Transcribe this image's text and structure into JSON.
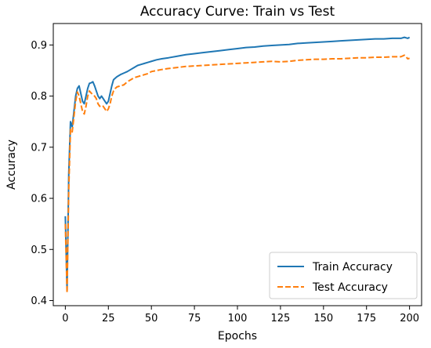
{
  "chart_data": {
    "type": "line",
    "title": "Accuracy Curve: Train vs Test",
    "xlabel": "Epochs",
    "ylabel": "Accuracy",
    "xlim": [
      -7,
      207
    ],
    "ylim": [
      0.39,
      0.942
    ],
    "xticks": [
      0,
      25,
      50,
      75,
      100,
      125,
      150,
      175,
      200
    ],
    "yticks": [
      0.4,
      0.5,
      0.6,
      0.7,
      0.8,
      0.9
    ],
    "ytick_labels": [
      "0.4",
      "0.5",
      "0.6",
      "0.7",
      "0.8",
      "0.9"
    ],
    "grid": false,
    "legend": "bottom-right",
    "series": [
      {
        "name": "Train Accuracy",
        "color": "#1f77b4",
        "style": "solid",
        "x": [
          0,
          1,
          2,
          3,
          4,
          5,
          6,
          7,
          8,
          9,
          10,
          11,
          12,
          13,
          14,
          15,
          16,
          17,
          18,
          19,
          20,
          21,
          22,
          23,
          24,
          25,
          26,
          27,
          28,
          29,
          30,
          32,
          34,
          36,
          38,
          40,
          42,
          44,
          46,
          48,
          50,
          53,
          56,
          60,
          65,
          70,
          75,
          80,
          85,
          90,
          95,
          100,
          105,
          110,
          115,
          120,
          125,
          130,
          135,
          140,
          145,
          150,
          155,
          160,
          165,
          170,
          175,
          180,
          185,
          190,
          195,
          197,
          199,
          200
        ],
        "y": [
          0.565,
          0.42,
          0.65,
          0.75,
          0.74,
          0.77,
          0.8,
          0.815,
          0.82,
          0.805,
          0.79,
          0.785,
          0.8,
          0.815,
          0.825,
          0.826,
          0.828,
          0.82,
          0.81,
          0.8,
          0.795,
          0.8,
          0.795,
          0.79,
          0.785,
          0.79,
          0.805,
          0.82,
          0.832,
          0.835,
          0.838,
          0.842,
          0.845,
          0.848,
          0.852,
          0.856,
          0.86,
          0.862,
          0.864,
          0.866,
          0.868,
          0.871,
          0.873,
          0.875,
          0.878,
          0.881,
          0.883,
          0.885,
          0.887,
          0.889,
          0.891,
          0.893,
          0.895,
          0.896,
          0.898,
          0.899,
          0.9,
          0.901,
          0.903,
          0.904,
          0.905,
          0.906,
          0.907,
          0.908,
          0.909,
          0.91,
          0.911,
          0.912,
          0.912,
          0.913,
          0.913,
          0.915,
          0.913,
          0.915
        ]
      },
      {
        "name": "Test Accuracy",
        "color": "#ff7f0e",
        "style": "dashed",
        "x": [
          0,
          1,
          2,
          3,
          4,
          5,
          6,
          7,
          8,
          9,
          10,
          11,
          12,
          13,
          14,
          15,
          16,
          17,
          18,
          19,
          20,
          21,
          22,
          23,
          24,
          25,
          26,
          27,
          28,
          29,
          30,
          32,
          34,
          36,
          38,
          40,
          42,
          44,
          46,
          48,
          50,
          53,
          56,
          60,
          65,
          70,
          75,
          80,
          85,
          90,
          95,
          100,
          105,
          110,
          115,
          120,
          125,
          130,
          135,
          140,
          145,
          150,
          155,
          160,
          165,
          170,
          175,
          180,
          185,
          190,
          195,
          197,
          199,
          200
        ],
        "y": [
          0.55,
          0.415,
          0.62,
          0.735,
          0.73,
          0.76,
          0.79,
          0.808,
          0.8,
          0.785,
          0.77,
          0.765,
          0.78,
          0.8,
          0.81,
          0.806,
          0.803,
          0.8,
          0.795,
          0.785,
          0.78,
          0.782,
          0.78,
          0.775,
          0.77,
          0.775,
          0.785,
          0.8,
          0.81,
          0.815,
          0.818,
          0.82,
          0.822,
          0.828,
          0.832,
          0.836,
          0.838,
          0.84,
          0.842,
          0.844,
          0.848,
          0.85,
          0.852,
          0.854,
          0.856,
          0.858,
          0.859,
          0.86,
          0.861,
          0.862,
          0.863,
          0.864,
          0.865,
          0.866,
          0.867,
          0.868,
          0.867,
          0.868,
          0.87,
          0.871,
          0.872,
          0.872,
          0.873,
          0.873,
          0.874,
          0.875,
          0.875,
          0.876,
          0.876,
          0.877,
          0.877,
          0.88,
          0.873,
          0.874
        ]
      }
    ]
  }
}
